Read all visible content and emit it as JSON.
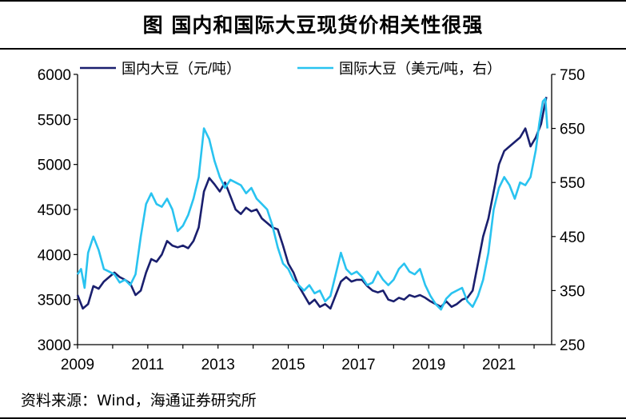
{
  "title": "图  国内和国际大豆现货价相关性很强",
  "source": "资料来源：Wind，海通证券研究所",
  "chart_data": {
    "type": "line",
    "x_ticks": [
      "2009",
      "2011",
      "2013",
      "2015",
      "2017",
      "2019",
      "2021"
    ],
    "xlim": [
      2009.0,
      2022.5
    ],
    "left_axis": {
      "ylim": [
        3000,
        6000
      ],
      "ticks": [
        "3000",
        "3500",
        "4000",
        "4500",
        "5000",
        "5500",
        "6000"
      ]
    },
    "right_axis": {
      "ylim": [
        250,
        750
      ],
      "ticks": [
        "250",
        "350",
        "450",
        "550",
        "650",
        "750"
      ]
    },
    "legend_position": "top",
    "series": [
      {
        "name": "国内大豆（元/吨）",
        "axis": "left",
        "color": "#1a1f6e",
        "points": [
          [
            2009.0,
            3550
          ],
          [
            2009.15,
            3400
          ],
          [
            2009.3,
            3450
          ],
          [
            2009.45,
            3650
          ],
          [
            2009.6,
            3620
          ],
          [
            2009.75,
            3700
          ],
          [
            2009.9,
            3750
          ],
          [
            2010.05,
            3800
          ],
          [
            2010.2,
            3750
          ],
          [
            2010.35,
            3720
          ],
          [
            2010.5,
            3680
          ],
          [
            2010.65,
            3550
          ],
          [
            2010.8,
            3600
          ],
          [
            2010.95,
            3800
          ],
          [
            2011.1,
            3950
          ],
          [
            2011.25,
            3920
          ],
          [
            2011.4,
            4000
          ],
          [
            2011.55,
            4150
          ],
          [
            2011.7,
            4100
          ],
          [
            2011.85,
            4080
          ],
          [
            2012.0,
            4100
          ],
          [
            2012.15,
            4070
          ],
          [
            2012.3,
            4150
          ],
          [
            2012.45,
            4300
          ],
          [
            2012.6,
            4700
          ],
          [
            2012.75,
            4850
          ],
          [
            2012.9,
            4780
          ],
          [
            2013.05,
            4700
          ],
          [
            2013.2,
            4800
          ],
          [
            2013.35,
            4650
          ],
          [
            2013.5,
            4500
          ],
          [
            2013.65,
            4450
          ],
          [
            2013.8,
            4520
          ],
          [
            2013.95,
            4480
          ],
          [
            2014.1,
            4500
          ],
          [
            2014.25,
            4400
          ],
          [
            2014.4,
            4350
          ],
          [
            2014.55,
            4300
          ],
          [
            2014.7,
            4280
          ],
          [
            2014.85,
            4100
          ],
          [
            2015.0,
            3900
          ],
          [
            2015.15,
            3800
          ],
          [
            2015.3,
            3650
          ],
          [
            2015.45,
            3550
          ],
          [
            2015.6,
            3450
          ],
          [
            2015.75,
            3500
          ],
          [
            2015.9,
            3420
          ],
          [
            2016.05,
            3450
          ],
          [
            2016.2,
            3400
          ],
          [
            2016.35,
            3550
          ],
          [
            2016.5,
            3700
          ],
          [
            2016.65,
            3750
          ],
          [
            2016.8,
            3700
          ],
          [
            2016.95,
            3720
          ],
          [
            2017.1,
            3720
          ],
          [
            2017.25,
            3650
          ],
          [
            2017.4,
            3600
          ],
          [
            2017.55,
            3580
          ],
          [
            2017.7,
            3600
          ],
          [
            2017.85,
            3500
          ],
          [
            2018.0,
            3480
          ],
          [
            2018.15,
            3520
          ],
          [
            2018.3,
            3500
          ],
          [
            2018.45,
            3550
          ],
          [
            2018.6,
            3530
          ],
          [
            2018.75,
            3550
          ],
          [
            2018.9,
            3520
          ],
          [
            2019.05,
            3480
          ],
          [
            2019.2,
            3450
          ],
          [
            2019.35,
            3420
          ],
          [
            2019.5,
            3480
          ],
          [
            2019.65,
            3420
          ],
          [
            2019.8,
            3450
          ],
          [
            2019.95,
            3500
          ],
          [
            2020.1,
            3520
          ],
          [
            2020.25,
            3600
          ],
          [
            2020.4,
            3900
          ],
          [
            2020.55,
            4200
          ],
          [
            2020.7,
            4400
          ],
          [
            2020.85,
            4700
          ],
          [
            2021.0,
            5000
          ],
          [
            2021.15,
            5150
          ],
          [
            2021.3,
            5200
          ],
          [
            2021.45,
            5250
          ],
          [
            2021.6,
            5300
          ],
          [
            2021.75,
            5400
          ],
          [
            2021.9,
            5200
          ],
          [
            2022.05,
            5300
          ],
          [
            2022.2,
            5450
          ],
          [
            2022.3,
            5650
          ],
          [
            2022.35,
            5750
          ]
        ]
      },
      {
        "name": "国际大豆（美元/吨，右）",
        "axis": "right",
        "color": "#29c3f0",
        "points": [
          [
            2009.0,
            380
          ],
          [
            2009.1,
            390
          ],
          [
            2009.2,
            355
          ],
          [
            2009.3,
            420
          ],
          [
            2009.45,
            450
          ],
          [
            2009.6,
            425
          ],
          [
            2009.75,
            390
          ],
          [
            2009.9,
            385
          ],
          [
            2010.05,
            380
          ],
          [
            2010.2,
            365
          ],
          [
            2010.35,
            370
          ],
          [
            2010.5,
            360
          ],
          [
            2010.65,
            380
          ],
          [
            2010.8,
            450
          ],
          [
            2010.95,
            510
          ],
          [
            2011.1,
            530
          ],
          [
            2011.25,
            510
          ],
          [
            2011.4,
            505
          ],
          [
            2011.55,
            520
          ],
          [
            2011.7,
            500
          ],
          [
            2011.85,
            460
          ],
          [
            2012.0,
            470
          ],
          [
            2012.15,
            490
          ],
          [
            2012.3,
            520
          ],
          [
            2012.45,
            560
          ],
          [
            2012.6,
            650
          ],
          [
            2012.75,
            630
          ],
          [
            2012.9,
            590
          ],
          [
            2013.05,
            560
          ],
          [
            2013.2,
            540
          ],
          [
            2013.35,
            555
          ],
          [
            2013.5,
            550
          ],
          [
            2013.65,
            545
          ],
          [
            2013.8,
            530
          ],
          [
            2013.95,
            540
          ],
          [
            2014.1,
            520
          ],
          [
            2014.25,
            510
          ],
          [
            2014.4,
            500
          ],
          [
            2014.55,
            470
          ],
          [
            2014.7,
            430
          ],
          [
            2014.85,
            400
          ],
          [
            2015.0,
            390
          ],
          [
            2015.15,
            370
          ],
          [
            2015.3,
            360
          ],
          [
            2015.45,
            350
          ],
          [
            2015.6,
            360
          ],
          [
            2015.75,
            345
          ],
          [
            2015.9,
            350
          ],
          [
            2016.05,
            330
          ],
          [
            2016.2,
            340
          ],
          [
            2016.35,
            380
          ],
          [
            2016.5,
            420
          ],
          [
            2016.65,
            390
          ],
          [
            2016.8,
            380
          ],
          [
            2016.95,
            385
          ],
          [
            2017.1,
            375
          ],
          [
            2017.25,
            360
          ],
          [
            2017.4,
            365
          ],
          [
            2017.55,
            385
          ],
          [
            2017.7,
            370
          ],
          [
            2017.85,
            360
          ],
          [
            2018.0,
            370
          ],
          [
            2018.15,
            390
          ],
          [
            2018.3,
            400
          ],
          [
            2018.45,
            385
          ],
          [
            2018.6,
            380
          ],
          [
            2018.75,
            390
          ],
          [
            2018.9,
            360
          ],
          [
            2019.05,
            340
          ],
          [
            2019.2,
            325
          ],
          [
            2019.35,
            315
          ],
          [
            2019.5,
            335
          ],
          [
            2019.65,
            345
          ],
          [
            2019.8,
            350
          ],
          [
            2019.95,
            355
          ],
          [
            2020.1,
            330
          ],
          [
            2020.25,
            320
          ],
          [
            2020.4,
            340
          ],
          [
            2020.55,
            370
          ],
          [
            2020.7,
            420
          ],
          [
            2020.85,
            500
          ],
          [
            2021.0,
            540
          ],
          [
            2021.15,
            560
          ],
          [
            2021.3,
            545
          ],
          [
            2021.45,
            520
          ],
          [
            2021.6,
            550
          ],
          [
            2021.75,
            545
          ],
          [
            2021.9,
            560
          ],
          [
            2022.05,
            610
          ],
          [
            2022.15,
            660
          ],
          [
            2022.25,
            700
          ],
          [
            2022.32,
            705
          ],
          [
            2022.38,
            650
          ]
        ]
      }
    ]
  }
}
